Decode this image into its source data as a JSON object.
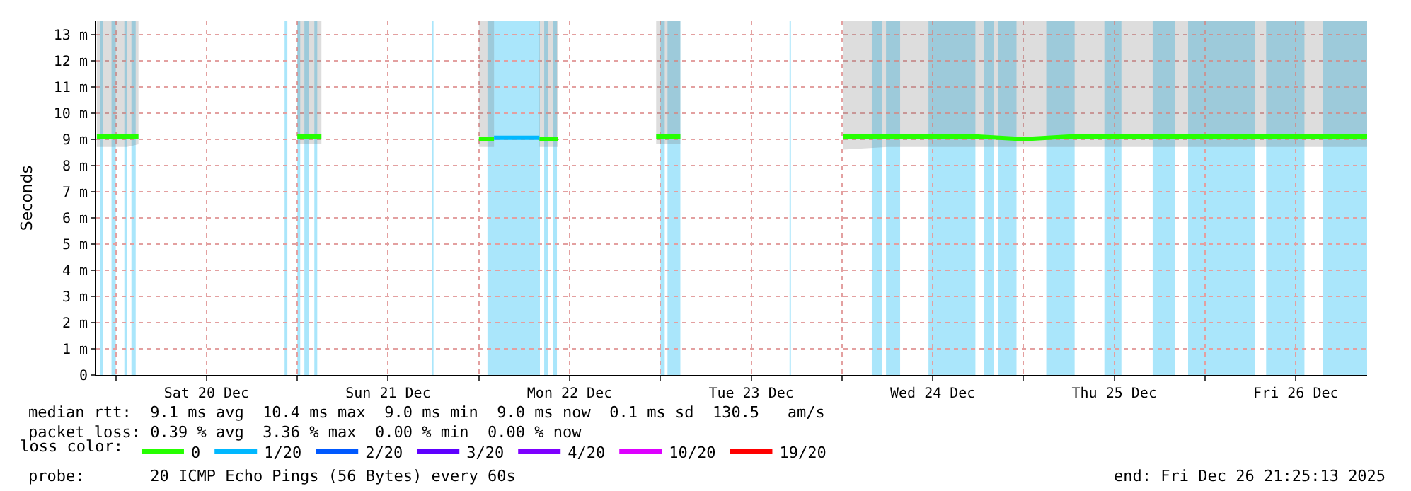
{
  "chart_data": {
    "type": "line",
    "ylabel": "Seconds",
    "xlim": [
      "2025-12-19T21:25",
      "2025-12-26T21:25"
    ],
    "xticks": [
      {
        "value": "2025-12-20T00:00",
        "label": null
      },
      {
        "value": "2025-12-20T12:00",
        "label": "Sat 20 Dec"
      },
      {
        "value": "2025-12-21T00:00",
        "label": null
      },
      {
        "value": "2025-12-21T12:00",
        "label": "Sun 21 Dec"
      },
      {
        "value": "2025-12-22T00:00",
        "label": null
      },
      {
        "value": "2025-12-22T12:00",
        "label": "Mon 22 Dec"
      },
      {
        "value": "2025-12-23T00:00",
        "label": null
      },
      {
        "value": "2025-12-23T12:00",
        "label": "Tue 23 Dec"
      },
      {
        "value": "2025-12-24T00:00",
        "label": null
      },
      {
        "value": "2025-12-24T12:00",
        "label": "Wed 24 Dec"
      },
      {
        "value": "2025-12-25T00:00",
        "label": null
      },
      {
        "value": "2025-12-25T12:00",
        "label": "Thu 25 Dec"
      },
      {
        "value": "2025-12-26T00:00",
        "label": null
      },
      {
        "value": "2025-12-26T12:00",
        "label": "Fri 26 Dec"
      }
    ],
    "ylim": [
      0,
      13.5
    ],
    "yticks": [
      0,
      {
        "value": 1,
        "label": "1 m"
      },
      {
        "value": 2,
        "label": "2 m"
      },
      {
        "value": 3,
        "label": "3 m"
      },
      {
        "value": 4,
        "label": "4 m"
      },
      {
        "value": 5,
        "label": "5 m"
      },
      {
        "value": 6,
        "label": "6 m"
      },
      {
        "value": 7,
        "label": "7 m"
      },
      {
        "value": 8,
        "label": "8 m"
      },
      {
        "value": 9,
        "label": "9 m"
      },
      {
        "value": 10,
        "label": "10 m"
      },
      {
        "value": 11,
        "label": "11 m"
      },
      {
        "value": 12,
        "label": "12 m"
      },
      {
        "value": 13,
        "label": "13 m"
      }
    ],
    "grid": true,
    "legend": "bottom",
    "legend_title": "loss color:",
    "line_style": "solid",
    "series": [
      {
        "name": "0",
        "color": "#26ff00",
        "x": [
          "2025-12-19T21:30",
          "2025-12-20T01:30",
          "2025-12-20T03:00",
          "2025-12-20T12:00",
          "2025-12-21T00:00",
          "2025-12-21T03:11",
          "2025-12-21T10:00",
          "2025-12-22T00:00",
          "2025-12-22T02:00",
          "2025-12-22T05:00",
          "2025-12-22T08:00",
          "2025-12-22T10:30",
          "2025-12-22T16:00",
          "2025-12-22T23:26",
          "2025-12-23T02:38",
          "2025-12-23T10:00",
          "2025-12-24T00:11",
          "2025-12-24T06:00",
          "2025-12-24T12:00",
          "2025-12-24T18:00",
          "2025-12-25T00:00",
          "2025-12-25T06:00",
          "2025-12-25T12:00",
          "2025-12-25T18:00",
          "2025-12-26T00:00",
          "2025-12-26T06:00",
          "2025-12-26T12:00",
          "2025-12-26T18:00",
          "2025-12-26T21:25"
        ],
        "values": [
          9.1,
          9.1,
          9.1,
          null,
          9.1,
          9.1,
          null,
          9.0,
          9.0,
          null,
          9.0,
          9.0,
          null,
          9.1,
          9.1,
          null,
          9.1,
          9.1,
          9.1,
          9.1,
          9.0,
          9.1,
          9.1,
          9.1,
          9.1,
          9.1,
          9.1,
          9.1,
          9.1
        ],
        "lower": [
          8.7,
          8.7,
          8.8,
          null,
          8.8,
          8.8,
          null,
          8.7,
          8.7,
          null,
          8.7,
          8.7,
          null,
          8.8,
          8.8,
          null,
          8.6,
          8.7,
          8.7,
          8.7,
          8.7,
          8.7,
          8.7,
          8.7,
          8.7,
          8.7,
          8.7,
          8.7,
          8.7
        ],
        "upper": [
          13.5,
          13.5,
          13.5,
          null,
          13.5,
          13.5,
          null,
          13.5,
          13.5,
          null,
          13.5,
          13.5,
          null,
          13.5,
          13.5,
          null,
          13.5,
          13.5,
          13.5,
          13.5,
          13.5,
          13.5,
          13.5,
          13.5,
          13.5,
          13.5,
          13.5,
          13.5,
          13.5
        ]
      },
      {
        "name": "1/20",
        "color": "#00b8ff",
        "x": [
          "2025-12-22T02:00",
          "2025-12-22T05:00",
          "2025-12-22T08:00"
        ],
        "values": [
          9.05,
          9.05,
          9.05
        ]
      },
      {
        "name": "2/20",
        "color": "#0059ff"
      },
      {
        "name": "3/20",
        "color": "#5e00ff"
      },
      {
        "name": "4/20",
        "color": "#7e00ff"
      },
      {
        "name": "10/20",
        "color": "#dd00ff"
      },
      {
        "name": "19/20",
        "color": "#ff0000"
      }
    ],
    "bands": [
      {
        "axis": "x",
        "from": "2025-12-19T21:56",
        "to": "2025-12-19T22:19",
        "color": "#aae6fb"
      },
      {
        "axis": "x",
        "from": "2025-12-19T23:26",
        "to": "2025-12-20T00:00",
        "color": "#aae6fb"
      },
      {
        "axis": "x",
        "from": "2025-12-20T01:08",
        "to": "2025-12-20T01:30",
        "color": "#aae6fb"
      },
      {
        "axis": "x",
        "from": "2025-12-20T02:04",
        "to": "2025-12-20T02:38",
        "color": "#aae6fb"
      },
      {
        "axis": "x",
        "from": "2025-12-20T22:19",
        "to": "2025-12-20T22:41",
        "color": "#aae6fb"
      },
      {
        "axis": "x",
        "from": "2025-12-21T00:00",
        "to": "2025-12-21T00:23",
        "color": "#aae6fb"
      },
      {
        "axis": "x",
        "from": "2025-12-21T00:56",
        "to": "2025-12-21T01:30",
        "color": "#aae6fb"
      },
      {
        "axis": "x",
        "from": "2025-12-21T02:15",
        "to": "2025-12-21T02:38",
        "color": "#aae6fb"
      },
      {
        "axis": "x",
        "from": "2025-12-21T17:49",
        "to": "2025-12-21T18:00",
        "color": "#aae6fb"
      },
      {
        "axis": "x",
        "from": "2025-12-22T01:08",
        "to": "2025-12-22T08:04",
        "color": "#aae6fb"
      },
      {
        "axis": "x",
        "from": "2025-12-22T08:38",
        "to": "2025-12-22T09:11",
        "color": "#aae6fb"
      },
      {
        "axis": "x",
        "from": "2025-12-22T09:45",
        "to": "2025-12-22T10:19",
        "color": "#aae6fb"
      },
      {
        "axis": "x",
        "from": "2025-12-23T00:00",
        "to": "2025-12-23T00:34",
        "color": "#aae6fb"
      },
      {
        "axis": "x",
        "from": "2025-12-23T00:56",
        "to": "2025-12-23T02:38",
        "color": "#aae6fb"
      },
      {
        "axis": "x",
        "from": "2025-12-23T17:04",
        "to": "2025-12-23T17:15",
        "color": "#aae6fb"
      },
      {
        "axis": "x",
        "from": "2025-12-24T03:56",
        "to": "2025-12-24T05:15",
        "color": "#aae6fb"
      },
      {
        "axis": "x",
        "from": "2025-12-24T05:49",
        "to": "2025-12-24T07:41",
        "color": "#aae6fb"
      },
      {
        "axis": "x",
        "from": "2025-12-24T11:26",
        "to": "2025-12-24T17:38",
        "color": "#aae6fb"
      },
      {
        "axis": "x",
        "from": "2025-12-24T18:45",
        "to": "2025-12-24T20:04",
        "color": "#aae6fb"
      },
      {
        "axis": "x",
        "from": "2025-12-24T20:38",
        "to": "2025-12-24T23:04",
        "color": "#aae6fb"
      },
      {
        "axis": "x",
        "from": "2025-12-25T03:00",
        "to": "2025-12-25T06:45",
        "color": "#aae6fb"
      },
      {
        "axis": "x",
        "from": "2025-12-25T10:41",
        "to": "2025-12-25T12:56",
        "color": "#aae6fb"
      },
      {
        "axis": "x",
        "from": "2025-12-25T17:04",
        "to": "2025-12-25T20:04",
        "color": "#aae6fb"
      },
      {
        "axis": "x",
        "from": "2025-12-25T21:45",
        "to": "2025-12-26T06:34",
        "color": "#aae6fb"
      },
      {
        "axis": "x",
        "from": "2025-12-26T08:04",
        "to": "2025-12-26T13:08",
        "color": "#aae6fb"
      },
      {
        "axis": "x",
        "from": "2025-12-26T15:34",
        "to": "2025-12-26T21:25",
        "color": "#aae6fb"
      }
    ],
    "annotations": [
      "median rtt:  9.1 ms avg  10.4 ms max  9.0 ms min  9.0 ms now  0.1 ms sd  130.5   am/s",
      "packet loss: 0.39 % avg  3.36 % max  0.00 % min  0.00 % now",
      "probe:       20 ICMP Echo Pings (56 Bytes) every 60s",
      "end: Fri Dec 26 21:25:13 2025"
    ]
  }
}
